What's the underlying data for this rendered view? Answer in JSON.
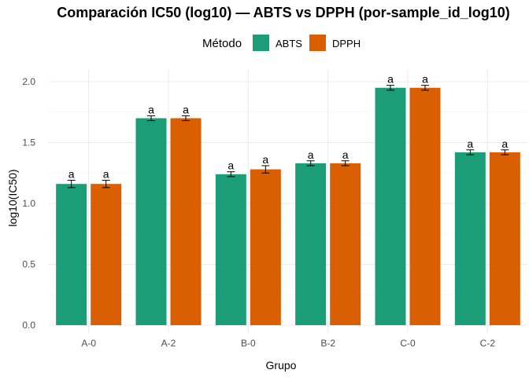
{
  "chart_data": {
    "type": "bar",
    "title": "Comparación IC50 (log10) — ABTS vs DPPH (por-sample_id_log10)",
    "xlabel": "Grupo",
    "ylabel": "log10(IC50)",
    "legend_title": "Método",
    "legend_position": "top",
    "grid": true,
    "ylim": [
      0,
      2.1
    ],
    "yticks": [
      "0.0",
      "0.5",
      "1.0",
      "1.5",
      "2.0"
    ],
    "categories": [
      "A-0",
      "A-2",
      "B-0",
      "B-2",
      "C-0",
      "C-2"
    ],
    "series": [
      {
        "name": "ABTS",
        "color": "#1b9e77",
        "values": [
          1.16,
          1.7,
          1.24,
          1.33,
          1.95,
          1.42
        ],
        "errors": [
          0.03,
          0.02,
          0.02,
          0.02,
          0.02,
          0.02
        ],
        "labels": [
          "a",
          "a",
          "a",
          "a",
          "a",
          "a"
        ]
      },
      {
        "name": "DPPH",
        "color": "#d95f02",
        "values": [
          1.16,
          1.7,
          1.28,
          1.33,
          1.95,
          1.42
        ],
        "errors": [
          0.03,
          0.02,
          0.03,
          0.02,
          0.02,
          0.02
        ],
        "labels": [
          "a",
          "a",
          "a",
          "a",
          "a",
          "a"
        ]
      }
    ]
  }
}
